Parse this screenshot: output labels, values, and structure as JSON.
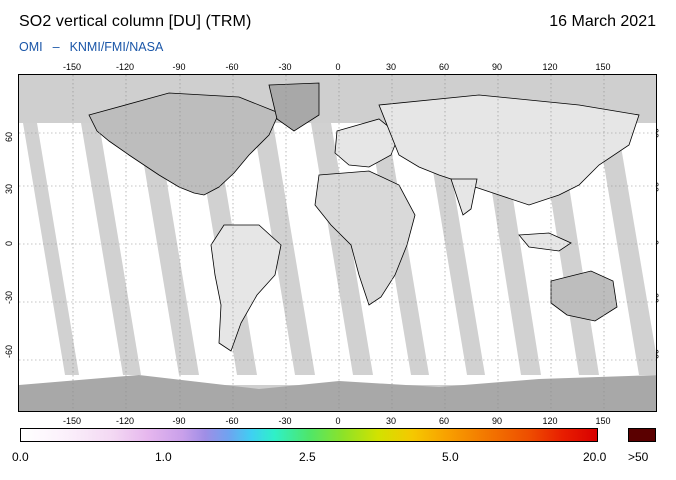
{
  "header": {
    "title": "SO2 vertical column [DU] (TRM)",
    "date": "16 March 2021",
    "credit_left": "OMI",
    "credit_sep": "–",
    "credit_right": "KNMI/FMI/NASA"
  },
  "map": {
    "longitude_ticks": [
      "-150",
      "-120",
      "-90",
      "-60",
      "-30",
      "0",
      "30",
      "60",
      "90",
      "120",
      "150"
    ],
    "latitude_ticks": [
      "60",
      "30",
      "0",
      "-30",
      "-60"
    ],
    "colors": {
      "no_data": "#cfcfcf",
      "land_no_data": "#a8a8a8",
      "valid_low": "#ffffff",
      "overflow": "#5a0000"
    }
  },
  "colorbar": {
    "labels": [
      "0.0",
      "1.0",
      "2.5",
      "5.0",
      "20.0"
    ],
    "overflow_label": ">50"
  }
}
